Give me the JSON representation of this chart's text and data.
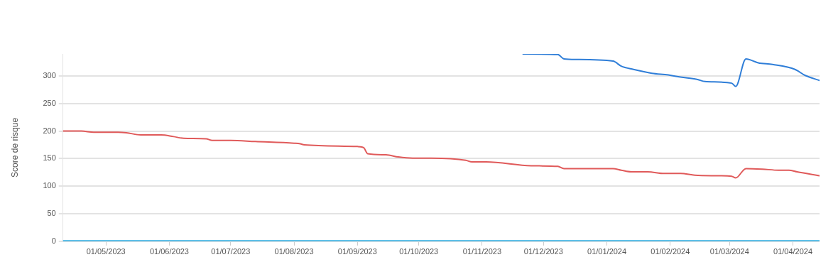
{
  "chart_data": {
    "type": "line",
    "ylabel": "Score de risque",
    "ylim": [
      0,
      340
    ],
    "yticks": [
      0,
      50,
      100,
      150,
      200,
      250,
      300
    ],
    "xlim": [
      "2023-04-10",
      "2024-04-14"
    ],
    "xticks": [
      {
        "value": "2023-05-01",
        "label": "01/05/2023"
      },
      {
        "value": "2023-06-01",
        "label": "01/06/2023"
      },
      {
        "value": "2023-07-01",
        "label": "01/07/2023"
      },
      {
        "value": "2023-08-01",
        "label": "01/08/2023"
      },
      {
        "value": "2023-09-01",
        "label": "01/09/2023"
      },
      {
        "value": "2023-10-01",
        "label": "01/10/2023"
      },
      {
        "value": "2023-11-01",
        "label": "01/11/2023"
      },
      {
        "value": "2023-12-01",
        "label": "01/12/2023"
      },
      {
        "value": "2024-01-01",
        "label": "01/01/2024"
      },
      {
        "value": "2024-02-01",
        "label": "01/02/2024"
      },
      {
        "value": "2024-03-01",
        "label": "01/03/2024"
      },
      {
        "value": "2024-04-01",
        "label": "01/04/2024"
      }
    ],
    "grid": "y",
    "legend": false,
    "marker": "none",
    "line_style": "solid",
    "series": [
      {
        "color": "#e05a5a",
        "x": [
          "2023-04-10",
          "2023-04-19",
          "2023-04-25",
          "2023-05-07",
          "2023-05-11",
          "2023-05-18",
          "2023-05-28",
          "2023-06-03",
          "2023-06-08",
          "2023-06-19",
          "2023-06-22",
          "2023-07-01",
          "2023-07-13",
          "2023-08-01",
          "2023-08-04",
          "2023-08-06",
          "2023-09-01",
          "2023-09-04",
          "2023-09-06",
          "2023-09-15",
          "2023-09-21",
          "2023-09-28",
          "2023-10-07",
          "2023-10-24",
          "2023-10-27",
          "2023-11-03",
          "2023-11-25",
          "2023-12-08",
          "2023-12-11",
          "2024-01-04",
          "2024-01-08",
          "2024-01-13",
          "2024-01-21",
          "2024-01-29",
          "2024-02-06",
          "2024-02-13",
          "2024-02-23",
          "2024-03-02",
          "2024-03-04",
          "2024-03-09",
          "2024-03-17",
          "2024-03-25",
          "2024-03-30",
          "2024-04-03",
          "2024-04-14"
        ],
        "values": [
          200,
          200,
          198,
          198,
          197,
          193,
          193,
          190,
          187,
          186,
          183,
          183,
          181,
          178,
          177,
          175,
          172,
          170,
          159,
          157,
          153,
          151,
          151,
          147,
          144,
          144,
          137,
          136,
          132,
          132,
          129,
          126,
          126,
          123,
          123,
          120,
          119,
          118,
          115,
          132,
          131,
          129,
          129,
          126,
          119
        ]
      },
      {
        "color": "#2f7ed8",
        "x": [
          "2023-11-21",
          "2023-12-08",
          "2023-12-11",
          "2023-12-17",
          "2024-01-04",
          "2024-01-08",
          "2024-01-14",
          "2024-01-23",
          "2024-01-31",
          "2024-02-06",
          "2024-02-14",
          "2024-02-18",
          "2024-03-02",
          "2024-03-04",
          "2024-03-09",
          "2024-03-15",
          "2024-03-22",
          "2024-04-02",
          "2024-04-07",
          "2024-04-14"
        ],
        "values": [
          340,
          339,
          331,
          330,
          327,
          318,
          312,
          305,
          302,
          298,
          294,
          290,
          287,
          281,
          331,
          324,
          321,
          312,
          301,
          292
        ]
      },
      {
        "color": "#29abe2",
        "x": [
          "2023-04-10",
          "2024-04-14"
        ],
        "values": [
          0,
          0
        ]
      }
    ]
  }
}
